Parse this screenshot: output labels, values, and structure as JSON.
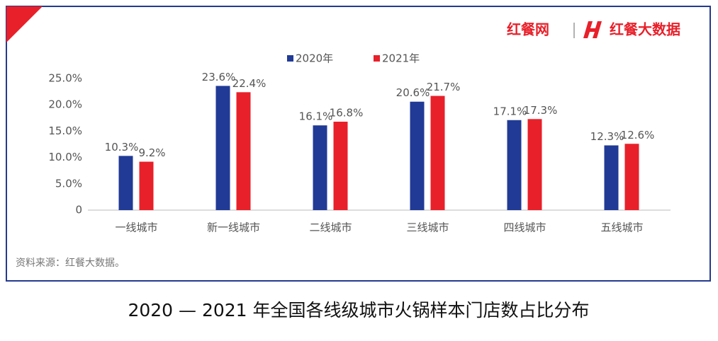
{
  "logo": {
    "brand": "红餐网",
    "product": "红餐大数据"
  },
  "chart_data": {
    "type": "bar",
    "title": "2020 — 2021 年全国各线级城市火锅样本门店数占比分布",
    "source": "资料来源：红餐大数据。",
    "categories": [
      "一线城市",
      "新一线城市",
      "二线城市",
      "三线城市",
      "四线城市",
      "五线城市"
    ],
    "series": [
      {
        "name": "2020年",
        "color": "#213a96",
        "values": [
          10.3,
          23.6,
          16.1,
          20.6,
          17.1,
          12.3
        ],
        "value_labels": [
          "10.3%",
          "23.6%",
          "16.1%",
          "20.6%",
          "17.1%",
          "12.3%"
        ]
      },
      {
        "name": "2021年",
        "color": "#e8202a",
        "values": [
          9.2,
          22.4,
          16.8,
          21.7,
          17.3,
          12.6
        ],
        "value_labels": [
          "9.2%",
          "22.4%",
          "16.8%",
          "21.7%",
          "17.3%",
          "12.6%"
        ]
      }
    ],
    "ylim": [
      0,
      25
    ],
    "yticks": [
      0,
      {
        "value": 5,
        "label": "5.0%"
      },
      {
        "value": 10,
        "label": "10.0%"
      },
      {
        "value": 15,
        "label": "15.0%"
      },
      {
        "value": 20,
        "label": "20.0%"
      },
      {
        "value": 25,
        "label": "25.0%"
      }
    ]
  }
}
